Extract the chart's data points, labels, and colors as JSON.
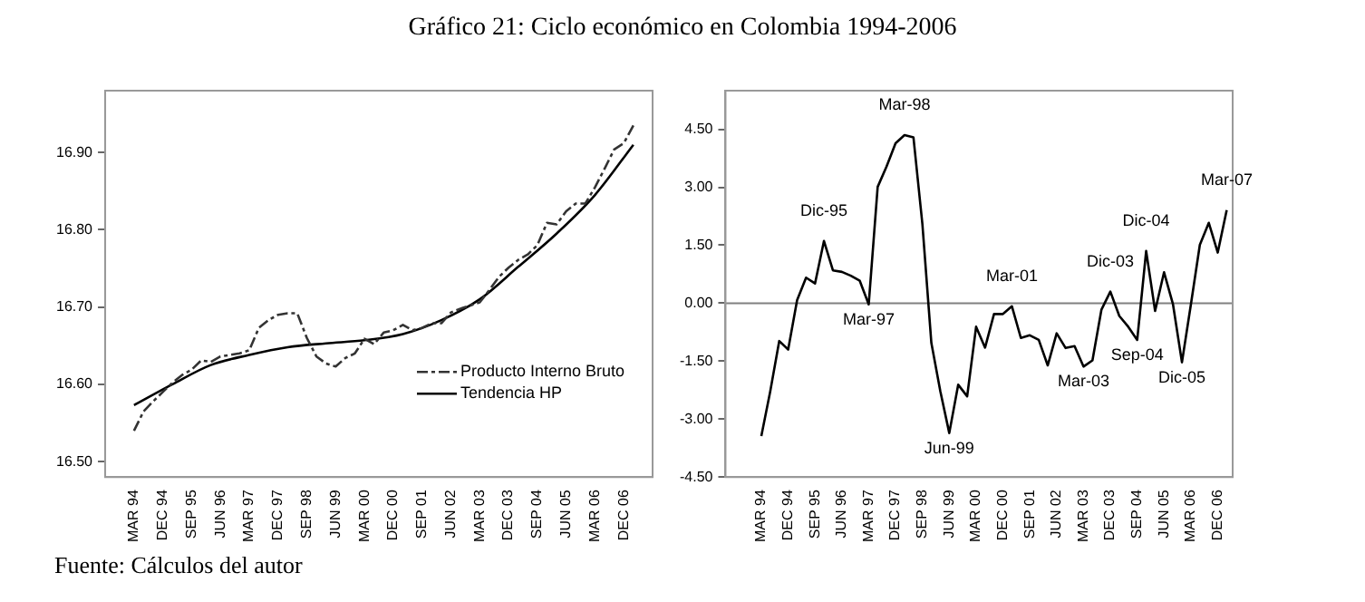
{
  "chart_data": [
    {
      "type": "line",
      "title": "Gráfico 21: Ciclo económico en Colombia 1994-2006",
      "annotations": [
        "Fuente: Cálculos del autor"
      ],
      "x": [
        "1994-03",
        "1994-06",
        "1994-09",
        "1994-12",
        "1995-03",
        "1995-06",
        "1995-09",
        "1995-12",
        "1996-03",
        "1996-06",
        "1996-09",
        "1996-12",
        "1997-03",
        "1997-06",
        "1997-09",
        "1997-12",
        "1998-03",
        "1998-06",
        "1998-09",
        "1998-12",
        "1999-03",
        "1999-06",
        "1999-09",
        "1999-12",
        "2000-03",
        "2000-06",
        "2000-09",
        "2000-12",
        "2001-03",
        "2001-06",
        "2001-09",
        "2001-12",
        "2002-03",
        "2002-06",
        "2002-09",
        "2002-12",
        "2003-03",
        "2003-06",
        "2003-09",
        "2003-12",
        "2004-03",
        "2004-06",
        "2004-09",
        "2004-12",
        "2005-03",
        "2005-06",
        "2005-09",
        "2005-12",
        "2006-03",
        "2006-06",
        "2006-09",
        "2006-12",
        "2007-03"
      ],
      "series": [
        {
          "name": "Producto Interno Bruto",
          "color": "#333333",
          "line_style": "dashed",
          "values": [
            16.54,
            16.565,
            16.578,
            16.59,
            16.602,
            16.612,
            16.619,
            16.631,
            16.629,
            16.636,
            16.638,
            16.64,
            16.644,
            16.673,
            16.683,
            16.69,
            16.692,
            16.692,
            16.66,
            16.636,
            16.627,
            16.623,
            16.634,
            16.64,
            16.659,
            16.652,
            16.667,
            16.67,
            16.677,
            16.67,
            16.673,
            16.679,
            16.679,
            16.693,
            16.698,
            16.702,
            16.706,
            16.722,
            16.739,
            16.751,
            16.761,
            16.768,
            16.78,
            16.809,
            16.807,
            16.824,
            16.834,
            16.834,
            16.855,
            16.879,
            16.904,
            16.912,
            16.935
          ]
        },
        {
          "name": "Tendencia HP",
          "color": "#000000",
          "line_style": "solid",
          "x": [
            "1994-03",
            "1995-03",
            "1996-03",
            "1997-03",
            "1998-03",
            "1999-03",
            "2000-03",
            "2001-03",
            "2002-03",
            "2003-03",
            "2004-03",
            "2005-03",
            "2006-03",
            "2007-03"
          ],
          "values": [
            16.573,
            16.6,
            16.625,
            16.638,
            16.648,
            16.653,
            16.657,
            16.665,
            16.683,
            16.71,
            16.752,
            16.795,
            16.845,
            16.91
          ]
        }
      ],
      "xlim": [
        "1993-06",
        "2007-09"
      ],
      "xticks": [
        {
          "value": "1994-03",
          "label": "MAR 94"
        },
        {
          "value": "1994-12",
          "label": "DEC 94"
        },
        {
          "value": "1995-09",
          "label": "SEP 95"
        },
        {
          "value": "1996-06",
          "label": "JUN 96"
        },
        {
          "value": "1997-03",
          "label": "MAR 97"
        },
        {
          "value": "1997-12",
          "label": "DEC 97"
        },
        {
          "value": "1998-09",
          "label": "SEP 98"
        },
        {
          "value": "1999-06",
          "label": "JUN 99"
        },
        {
          "value": "2000-03",
          "label": "MAR 00"
        },
        {
          "value": "2000-12",
          "label": "DEC 00"
        },
        {
          "value": "2001-09",
          "label": "SEP 01"
        },
        {
          "value": "2002-06",
          "label": "JUN 02"
        },
        {
          "value": "2003-03",
          "label": "MAR 03"
        },
        {
          "value": "2003-12",
          "label": "DEC 03"
        },
        {
          "value": "2004-09",
          "label": "SEP 04"
        },
        {
          "value": "2005-06",
          "label": "JUN 05"
        },
        {
          "value": "2006-03",
          "label": "MAR 06"
        },
        {
          "value": "2006-12",
          "label": "DEC 06"
        }
      ],
      "ylim": [
        16.48,
        16.98
      ],
      "yticks": [
        {
          "value": 16.5,
          "label": "16.50"
        },
        {
          "value": 16.6,
          "label": "16.60"
        },
        {
          "value": 16.7,
          "label": "16.70"
        },
        {
          "value": 16.8,
          "label": "16.80"
        },
        {
          "value": 16.9,
          "label": "16.90"
        }
      ],
      "legend": "bottom right",
      "grid": false
    },
    {
      "type": "line",
      "x": [
        "1994-03",
        "1994-06",
        "1994-09",
        "1994-12",
        "1995-03",
        "1995-06",
        "1995-09",
        "1995-12",
        "1996-03",
        "1996-06",
        "1996-09",
        "1996-12",
        "1997-03",
        "1997-06",
        "1997-09",
        "1997-12",
        "1998-03",
        "1998-06",
        "1998-09",
        "1998-12",
        "1999-03",
        "1999-06",
        "1999-09",
        "1999-12",
        "2000-03",
        "2000-06",
        "2000-09",
        "2000-12",
        "2001-03",
        "2001-06",
        "2001-09",
        "2001-12",
        "2002-03",
        "2002-06",
        "2002-09",
        "2002-12",
        "2003-03",
        "2003-06",
        "2003-09",
        "2003-12",
        "2004-03",
        "2004-06",
        "2004-09",
        "2004-12",
        "2005-03",
        "2005-06",
        "2005-09",
        "2005-12",
        "2006-03",
        "2006-06",
        "2006-09",
        "2006-12",
        "2007-03"
      ],
      "series": [
        {
          "color": "#000000",
          "values": [
            -3.44,
            -2.28,
            -0.98,
            -1.2,
            0.08,
            0.66,
            0.51,
            1.61,
            0.85,
            0.81,
            0.71,
            0.58,
            -0.03,
            3.01,
            3.54,
            4.14,
            4.35,
            4.29,
            2.04,
            -1.03,
            -2.28,
            -3.36,
            -2.11,
            -2.41,
            -0.61,
            -1.15,
            -0.28,
            -0.28,
            -0.08,
            -0.9,
            -0.83,
            -0.95,
            -1.61,
            -0.78,
            -1.16,
            -1.11,
            -1.64,
            -1.48,
            -0.17,
            0.3,
            -0.33,
            -0.61,
            -0.95,
            1.35,
            -0.2,
            0.8,
            -0.03,
            -1.53,
            -0.03,
            1.51,
            2.08,
            1.31,
            2.41
          ]
        }
      ],
      "xlim": [
        "1993-03",
        "2007-05"
      ],
      "xticks": [
        {
          "value": "1994-03",
          "label": "MAR 94"
        },
        {
          "value": "1994-12",
          "label": "DEC 94"
        },
        {
          "value": "1995-09",
          "label": "SEP 95"
        },
        {
          "value": "1996-06",
          "label": "JUN 96"
        },
        {
          "value": "1997-03",
          "label": "MAR 97"
        },
        {
          "value": "1997-12",
          "label": "DEC 97"
        },
        {
          "value": "1998-09",
          "label": "SEP 98"
        },
        {
          "value": "1999-06",
          "label": "JUN 99"
        },
        {
          "value": "2000-03",
          "label": "MAR 00"
        },
        {
          "value": "2000-12",
          "label": "DEC 00"
        },
        {
          "value": "2001-09",
          "label": "SEP 01"
        },
        {
          "value": "2002-06",
          "label": "JUN 02"
        },
        {
          "value": "2003-03",
          "label": "MAR 03"
        },
        {
          "value": "2003-12",
          "label": "DEC 03"
        },
        {
          "value": "2004-09",
          "label": "SEP 04"
        },
        {
          "value": "2005-06",
          "label": "JUN 05"
        },
        {
          "value": "2006-03",
          "label": "MAR 06"
        },
        {
          "value": "2006-12",
          "label": "DEC 06"
        }
      ],
      "ylim": [
        -4.5,
        5.5
      ],
      "yticks": [
        {
          "value": -4.5,
          "label": "-4.50"
        },
        {
          "value": -3,
          "label": "-3.00"
        },
        {
          "value": -1.5,
          "label": "-1.50"
        },
        {
          "value": 0,
          "label": "0.00"
        },
        {
          "value": 1.5,
          "label": "1.50"
        },
        {
          "value": 3,
          "label": "3.00"
        },
        {
          "value": 4.5,
          "label": "4.50"
        }
      ],
      "ref_lines": [
        {
          "axis": "y",
          "value": 0,
          "color": "#808080"
        }
      ],
      "annotations": [
        {
          "text": "Dic-95",
          "x": "1995-12",
          "y": 1.61
        },
        {
          "text": "Mar-97",
          "x": "1997-03",
          "y": -0.03
        },
        {
          "text": "Mar-98",
          "x": "1998-03",
          "y": 4.35
        },
        {
          "text": "Jun-99",
          "x": "1999-06",
          "y": -3.36
        },
        {
          "text": "Mar-01",
          "x": "2001-03",
          "y": -0.08
        },
        {
          "text": "Mar-03",
          "x": "2003-03",
          "y": -1.64
        },
        {
          "text": "Dic-03",
          "x": "2003-12",
          "y": 0.3
        },
        {
          "text": "Sep-04",
          "x": "2004-09",
          "y": -0.95
        },
        {
          "text": "Dic-04",
          "x": "2004-12",
          "y": 1.35
        },
        {
          "text": "Dic-05",
          "x": "2005-12",
          "y": -1.53
        },
        {
          "text": "Mar-07",
          "x": "2007-03",
          "y": 2.41
        }
      ],
      "grid": false,
      "legend": false
    }
  ]
}
